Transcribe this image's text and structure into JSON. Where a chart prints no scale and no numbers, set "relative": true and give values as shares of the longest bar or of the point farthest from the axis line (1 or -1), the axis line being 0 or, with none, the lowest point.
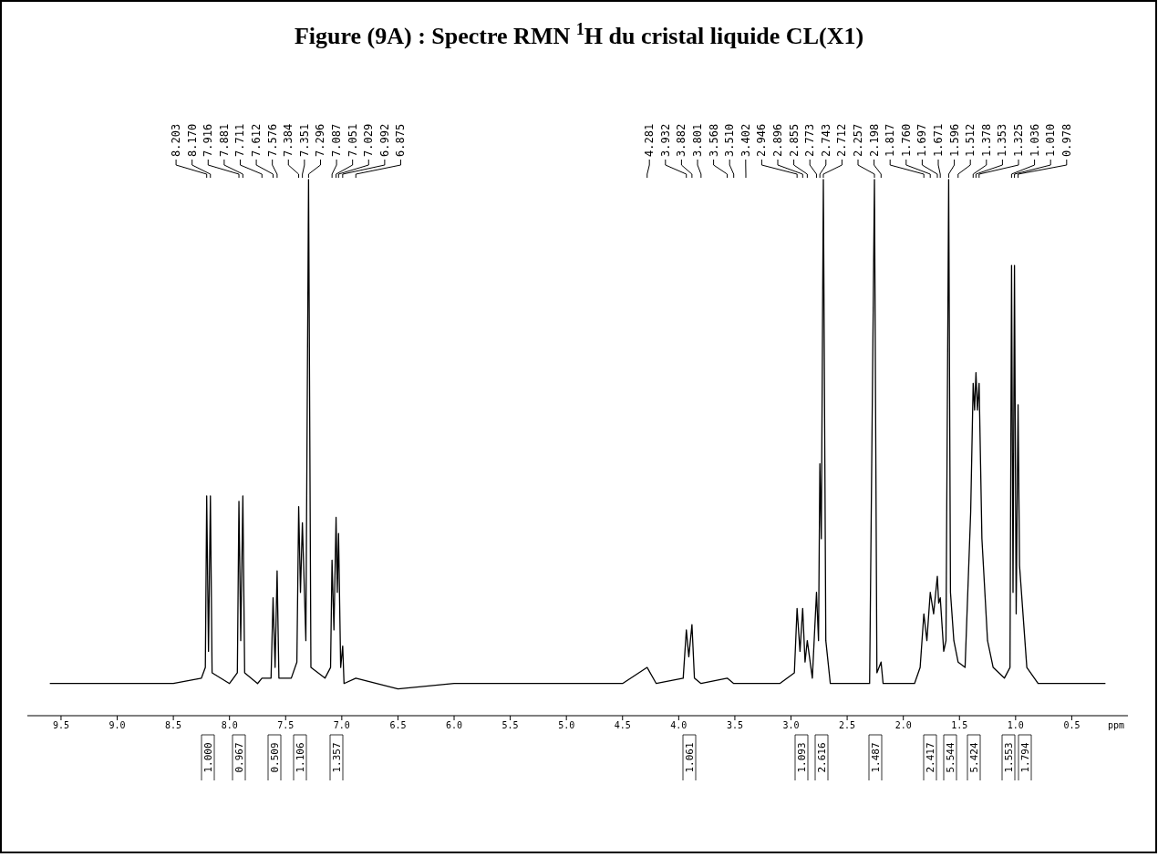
{
  "chart_data": {
    "type": "line",
    "title": "Figure (9A) : Spectre RMN $^{1}$H du cristal liquide CL(X1)",
    "xlabel": "ppm",
    "relative": true,
    "xlim": [
      9.8,
      0.0
    ],
    "xticks": [
      {
        "value": 9.5,
        "label": "9.5"
      },
      {
        "value": 9,
        "label": "9.0"
      },
      {
        "value": 8.5,
        "label": "8.5"
      },
      {
        "value": 8,
        "label": "8.0"
      },
      {
        "value": 7.5,
        "label": "7.5"
      },
      {
        "value": 7,
        "label": "7.0"
      },
      {
        "value": 6.5,
        "label": "6.5"
      },
      {
        "value": 6,
        "label": "6.0"
      },
      {
        "value": 5.5,
        "label": "5.5"
      },
      {
        "value": 5,
        "label": "5.0"
      },
      {
        "value": 4.5,
        "label": "4.5"
      },
      {
        "value": 4,
        "label": "4.0"
      },
      {
        "value": 3.5,
        "label": "3.5"
      },
      {
        "value": 3,
        "label": "3.0"
      },
      {
        "value": 2.5,
        "label": "2.5"
      },
      {
        "value": 2,
        "label": "2.0"
      },
      {
        "value": 1.5,
        "label": "1.5"
      },
      {
        "value": 1,
        "label": "1.0"
      },
      {
        "value": 0.5,
        "label": "0.5"
      }
    ],
    "x": [
      9.6,
      9.0,
      8.5,
      8.25,
      8.215,
      8.203,
      8.187,
      8.17,
      8.155,
      8.0,
      7.93,
      7.916,
      7.9,
      7.881,
      7.865,
      7.75,
      7.711,
      7.63,
      7.612,
      7.594,
      7.576,
      7.56,
      7.45,
      7.4,
      7.384,
      7.368,
      7.351,
      7.32,
      7.296,
      7.275,
      7.15,
      7.1,
      7.087,
      7.07,
      7.051,
      7.04,
      7.029,
      7.01,
      6.992,
      6.98,
      6.875,
      6.5,
      6.0,
      5.5,
      5.0,
      4.5,
      4.281,
      4.2,
      3.96,
      3.932,
      3.91,
      3.882,
      3.86,
      3.801,
      3.568,
      3.51,
      3.402,
      3.1,
      2.97,
      2.946,
      2.92,
      2.896,
      2.875,
      2.855,
      2.81,
      2.773,
      2.755,
      2.743,
      2.73,
      2.712,
      2.69,
      2.65,
      2.3,
      2.257,
      2.235,
      2.198,
      2.18,
      1.9,
      1.85,
      1.817,
      1.79,
      1.76,
      1.73,
      1.697,
      1.685,
      1.671,
      1.64,
      1.62,
      1.596,
      1.58,
      1.55,
      1.512,
      1.45,
      1.4,
      1.378,
      1.365,
      1.353,
      1.34,
      1.325,
      1.3,
      1.25,
      1.2,
      1.1,
      1.05,
      1.036,
      1.023,
      1.01,
      0.995,
      0.978,
      0.965,
      0.9,
      0.8,
      0.5,
      0.2
    ],
    "series": [
      {
        "color": "#000000",
        "values": [
          0.06,
          0.06,
          0.06,
          0.07,
          0.09,
          0.41,
          0.12,
          0.41,
          0.08,
          0.06,
          0.08,
          0.4,
          0.14,
          0.41,
          0.08,
          0.06,
          0.07,
          0.07,
          0.22,
          0.09,
          0.27,
          0.07,
          0.07,
          0.1,
          0.39,
          0.23,
          0.36,
          0.14,
          1.0,
          0.09,
          0.07,
          0.09,
          0.29,
          0.16,
          0.37,
          0.23,
          0.34,
          0.09,
          0.13,
          0.06,
          0.07,
          0.05,
          0.06,
          0.06,
          0.06,
          0.06,
          0.09,
          0.06,
          0.07,
          0.16,
          0.11,
          0.17,
          0.07,
          0.06,
          0.07,
          0.06,
          0.06,
          0.06,
          0.08,
          0.2,
          0.12,
          0.2,
          0.1,
          0.14,
          0.07,
          0.23,
          0.14,
          0.47,
          0.33,
          1.0,
          0.14,
          0.06,
          0.06,
          1.0,
          0.08,
          0.1,
          0.06,
          0.06,
          0.09,
          0.19,
          0.14,
          0.23,
          0.19,
          0.26,
          0.21,
          0.22,
          0.12,
          0.14,
          1.0,
          0.23,
          0.14,
          0.1,
          0.09,
          0.38,
          0.62,
          0.57,
          0.64,
          0.57,
          0.62,
          0.33,
          0.14,
          0.09,
          0.07,
          0.09,
          0.84,
          0.23,
          0.84,
          0.19,
          0.58,
          0.28,
          0.09,
          0.06,
          0.06,
          0.06
        ]
      }
    ],
    "annotations": [
      {
        "text": "8.203",
        "x": 8.203
      },
      {
        "text": "8.170",
        "x": 8.17
      },
      {
        "text": "7.916",
        "x": 7.916
      },
      {
        "text": "7.881",
        "x": 7.881
      },
      {
        "text": "7.711",
        "x": 7.711
      },
      {
        "text": "7.612",
        "x": 7.612
      },
      {
        "text": "7.576",
        "x": 7.576
      },
      {
        "text": "7.384",
        "x": 7.384
      },
      {
        "text": "7.351",
        "x": 7.351
      },
      {
        "text": "7.296",
        "x": 7.296
      },
      {
        "text": "7.087",
        "x": 7.087
      },
      {
        "text": "7.051",
        "x": 7.051
      },
      {
        "text": "7.029",
        "x": 7.029
      },
      {
        "text": "6.992",
        "x": 6.992
      },
      {
        "text": "6.875",
        "x": 6.875
      },
      {
        "text": "4.281",
        "x": 4.281
      },
      {
        "text": "3.932",
        "x": 3.932
      },
      {
        "text": "3.882",
        "x": 3.882
      },
      {
        "text": "3.801",
        "x": 3.801
      },
      {
        "text": "3.568",
        "x": 3.568
      },
      {
        "text": "3.510",
        "x": 3.51
      },
      {
        "text": "3.402",
        "x": 3.402
      },
      {
        "text": "2.946",
        "x": 2.946
      },
      {
        "text": "2.896",
        "x": 2.896
      },
      {
        "text": "2.855",
        "x": 2.855
      },
      {
        "text": "2.773",
        "x": 2.773
      },
      {
        "text": "2.743",
        "x": 2.743
      },
      {
        "text": "2.712",
        "x": 2.712
      },
      {
        "text": "2.257",
        "x": 2.257
      },
      {
        "text": "2.198",
        "x": 2.198
      },
      {
        "text": "1.817",
        "x": 1.817
      },
      {
        "text": "1.760",
        "x": 1.76
      },
      {
        "text": "1.697",
        "x": 1.697
      },
      {
        "text": "1.671",
        "x": 1.671
      },
      {
        "text": "1.596",
        "x": 1.596
      },
      {
        "text": "1.512",
        "x": 1.512
      },
      {
        "text": "1.378",
        "x": 1.378
      },
      {
        "text": "1.353",
        "x": 1.353
      },
      {
        "text": "1.325",
        "x": 1.325
      },
      {
        "text": "1.036",
        "x": 1.036
      },
      {
        "text": "1.010",
        "x": 1.01
      },
      {
        "text": "0.978",
        "x": 0.978
      },
      "1.000",
      "0.967",
      "0.509",
      "1.106",
      "1.357",
      "1.061",
      "1.093",
      "2.616",
      "1.487",
      "2.417",
      "5.544",
      "5.424",
      "1.553",
      "1.794"
    ]
  }
}
